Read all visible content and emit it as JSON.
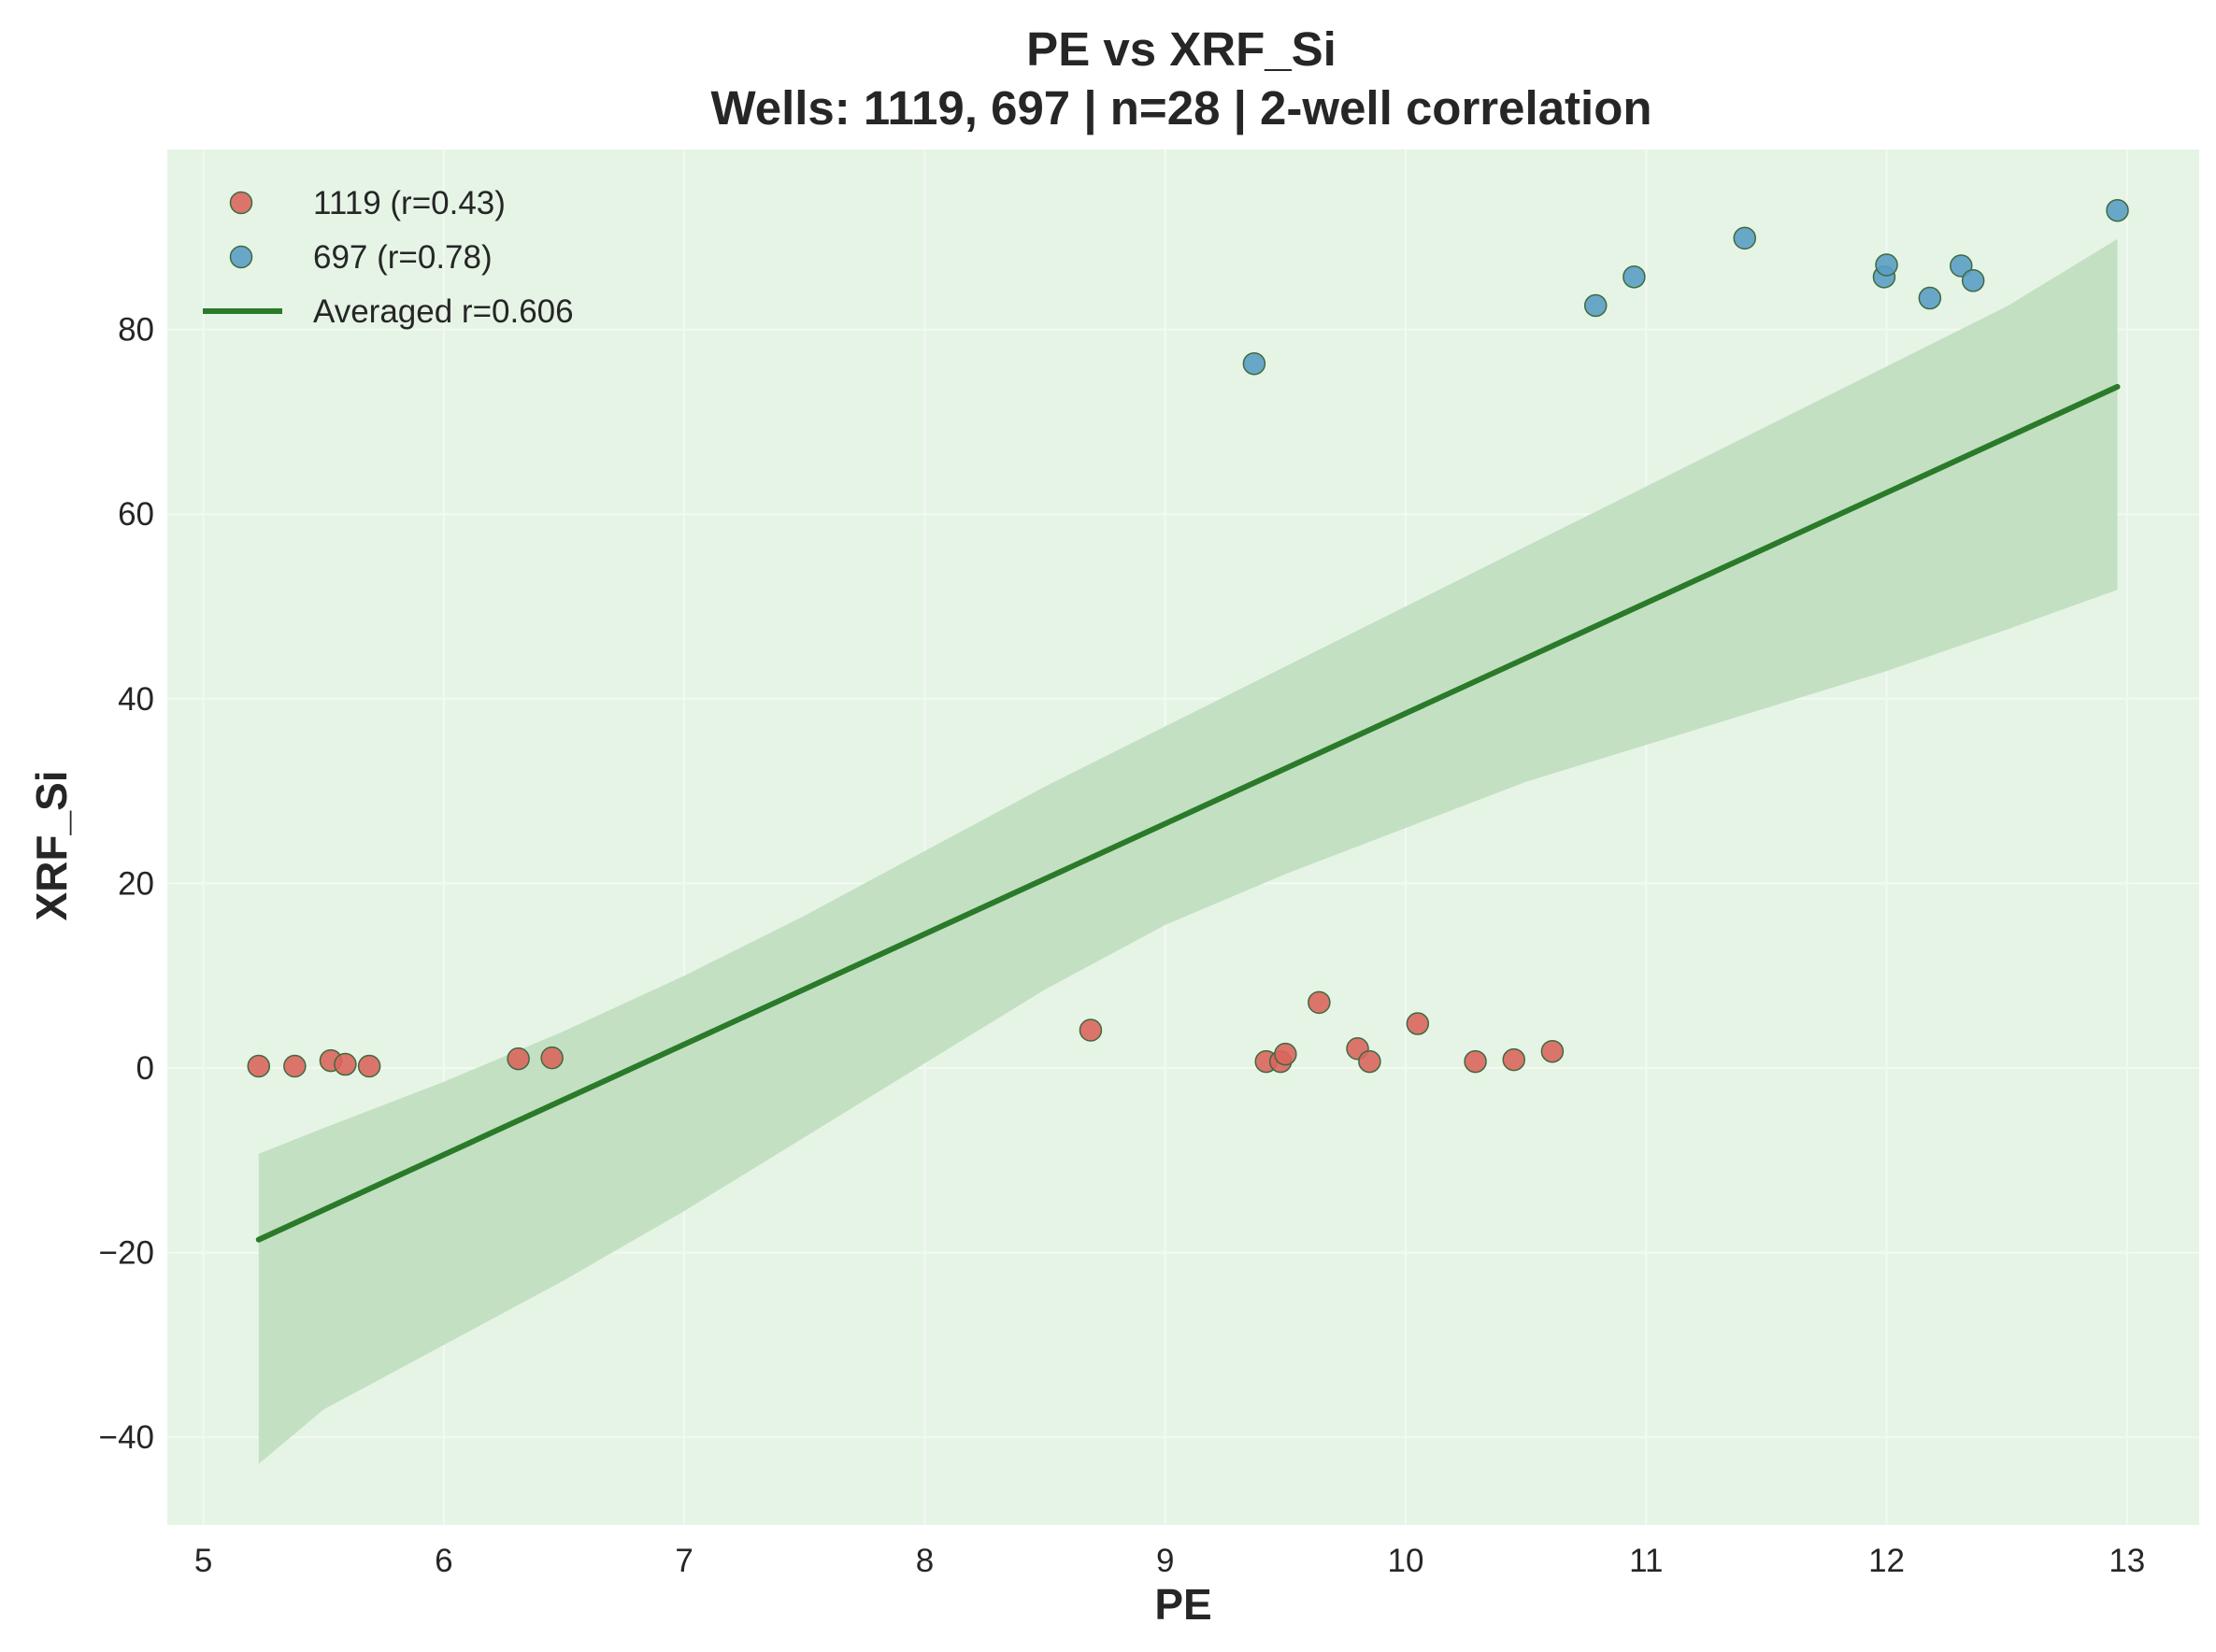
{
  "chart_data": {
    "type": "scatter",
    "title": "PE vs XRF_Si",
    "subtitle": "Wells: 1119, 697 | n=28 | 2-well correlation",
    "xlabel": "PE",
    "ylabel": "XRF_Si",
    "xlim": [
      4.85,
      13.3
    ],
    "ylim": [
      -49.5,
      99.5
    ],
    "xticks": [
      5,
      6,
      7,
      8,
      9,
      10,
      11,
      12,
      13
    ],
    "yticks": [
      -40,
      -20,
      0,
      20,
      40,
      60,
      80
    ],
    "grid": true,
    "legend_position": "top-left",
    "colors": {
      "background": "#e6f4e6",
      "grid": "#f2f9f2",
      "fit_line": "#2a7a2a",
      "band": "#c3e0c3"
    },
    "series": [
      {
        "name": "1119 (r=0.43)",
        "color": "#d9665d",
        "points": [
          [
            5.23,
            0.2
          ],
          [
            5.38,
            0.2
          ],
          [
            5.53,
            0.8
          ],
          [
            5.59,
            0.4
          ],
          [
            5.69,
            0.2
          ],
          [
            6.31,
            1.0
          ],
          [
            6.45,
            1.1
          ],
          [
            8.69,
            4.1
          ],
          [
            9.42,
            0.7
          ],
          [
            9.48,
            0.7
          ],
          [
            9.5,
            1.5
          ],
          [
            9.64,
            7.1
          ],
          [
            9.8,
            2.1
          ],
          [
            9.85,
            0.7
          ],
          [
            10.05,
            4.8
          ],
          [
            10.29,
            0.7
          ],
          [
            10.45,
            0.9
          ],
          [
            10.61,
            1.8
          ]
        ]
      },
      {
        "name": "697 (r=0.78)",
        "color": "#5a9fc4",
        "points": [
          [
            9.37,
            76.3
          ],
          [
            10.79,
            82.6
          ],
          [
            10.95,
            85.7
          ],
          [
            11.41,
            89.9
          ],
          [
            11.99,
            85.7
          ],
          [
            12.0,
            87.0
          ],
          [
            12.18,
            83.4
          ],
          [
            12.31,
            86.9
          ],
          [
            12.36,
            85.3
          ],
          [
            12.96,
            92.9
          ]
        ]
      }
    ],
    "fit": {
      "name": "Averaged r=0.606",
      "x": [
        5.23,
        12.96
      ],
      "y": [
        -18.6,
        73.8
      ],
      "band": {
        "x": [
          5.23,
          5.5,
          6.0,
          6.5,
          7.0,
          7.5,
          8.0,
          8.5,
          9.0,
          9.5,
          10.0,
          10.5,
          11.0,
          11.5,
          12.0,
          12.5,
          12.96
        ],
        "upper": [
          -9.3,
          -6.5,
          -1.5,
          4.0,
          10.0,
          16.5,
          23.5,
          30.5,
          37.0,
          43.5,
          50.0,
          56.5,
          63.0,
          69.5,
          76.0,
          82.5,
          89.8
        ],
        "lower": [
          -42.9,
          -37.0,
          -30.0,
          -23.0,
          -15.5,
          -7.5,
          0.5,
          8.5,
          15.5,
          21.0,
          26.0,
          31.0,
          35.0,
          39.0,
          43.0,
          47.5,
          51.8
        ]
      }
    }
  }
}
